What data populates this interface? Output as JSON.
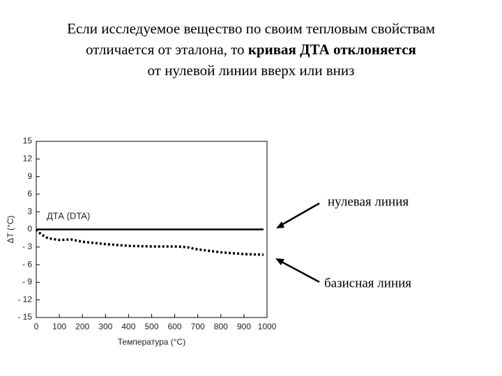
{
  "heading": {
    "line1": "Если исследуемое вещество по своим тепловым свойствам",
    "line2_start": "отличается от эталона, то",
    "line2_bold": "кривая ДТА отклоняется",
    "line3": "от нулевой линии вверх или вниз"
  },
  "chart_data": {
    "type": "line",
    "annotation": "ДТА (DTA)",
    "x_label": "Температура (°C)",
    "y_label": "ΔT (°C)",
    "x": [
      0,
      20,
      50,
      100,
      150,
      200,
      300,
      400,
      500,
      600,
      650,
      700,
      800,
      900,
      985
    ],
    "series": [
      {
        "name": "нулевая линия",
        "color": "#000000",
        "style": "solid",
        "values": [
          0,
          0,
          0,
          0,
          0,
          0,
          0,
          0,
          0,
          0,
          0,
          0,
          0,
          0,
          0
        ]
      },
      {
        "name": "базисная линия",
        "color": "#000000",
        "style": "dotted",
        "values": [
          0,
          -0.8,
          -1.5,
          -1.8,
          -1.7,
          -2.1,
          -2.5,
          -2.8,
          -2.9,
          -2.9,
          -3.0,
          -3.4,
          -3.9,
          -4.2,
          -4.3
        ]
      }
    ],
    "xlim": [
      0,
      1000
    ],
    "xticks": [
      0,
      100,
      200,
      300,
      400,
      500,
      600,
      700,
      800,
      900,
      1000
    ],
    "ylim": [
      -15,
      15
    ],
    "yticks": [
      15,
      12,
      9,
      6,
      3,
      0,
      {
        "value": -3,
        "label": "- 3"
      },
      {
        "value": -6,
        "label": "- 6"
      },
      {
        "value": -9,
        "label": "- 9"
      },
      {
        "value": -12,
        "label": "- 12"
      },
      {
        "value": -15,
        "label": "- 15"
      }
    ],
    "grid": false
  }
}
